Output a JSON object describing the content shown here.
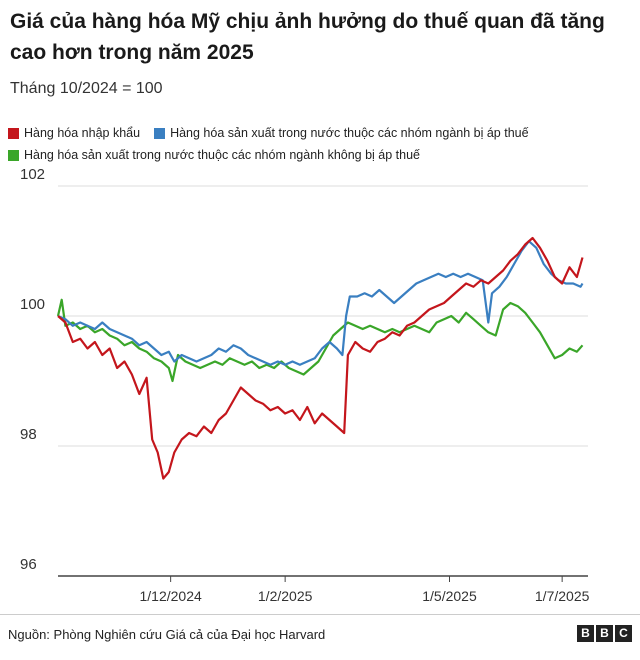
{
  "title": "Giá của hàng hóa Mỹ chịu ảnh hưởng do thuế quan đã tăng cao hơn trong năm 2025",
  "subtitle": "Tháng 10/2024 = 100",
  "source": "Nguồn: Phòng Nghiên cứu Giá cả của Đại học Harvard",
  "logo": [
    "B",
    "B",
    "C"
  ],
  "colors": {
    "red": "#c4161c",
    "blue": "#3a7fc1",
    "green": "#3aa629",
    "grid": "#dddddd",
    "axis": "#444444"
  },
  "chart_data": {
    "type": "line",
    "title": "Giá của hàng hóa Mỹ chịu ảnh hưởng do thuế quan đã tăng cao hơn trong năm 2025",
    "subtitle": "Tháng 10/2024 = 100",
    "xlabel": "",
    "ylabel": "",
    "ylim": [
      96,
      102
    ],
    "yticks": [
      96,
      98,
      100,
      102
    ],
    "xlim": [
      "2024-10-01",
      "2025-07-15"
    ],
    "xticks": [
      {
        "date": "2024-12-01",
        "label": "1/12/2024"
      },
      {
        "date": "2025-02-01",
        "label": "1/2/2025"
      },
      {
        "date": "2025-05-01",
        "label": "1/5/2025"
      },
      {
        "date": "2025-07-01",
        "label": "1/7/2025"
      }
    ],
    "grid": true,
    "legend": "top",
    "series": [
      {
        "name": "Hàng hóa nhập khẩu",
        "color": "#c4161c",
        "points": [
          [
            "2024-10-01",
            100.0
          ],
          [
            "2024-10-05",
            99.9
          ],
          [
            "2024-10-09",
            99.6
          ],
          [
            "2024-10-13",
            99.65
          ],
          [
            "2024-10-17",
            99.5
          ],
          [
            "2024-10-21",
            99.6
          ],
          [
            "2024-10-25",
            99.4
          ],
          [
            "2024-10-29",
            99.5
          ],
          [
            "2024-11-02",
            99.2
          ],
          [
            "2024-11-06",
            99.3
          ],
          [
            "2024-11-10",
            99.1
          ],
          [
            "2024-11-14",
            98.8
          ],
          [
            "2024-11-18",
            99.05
          ],
          [
            "2024-11-21",
            98.1
          ],
          [
            "2024-11-24",
            97.9
          ],
          [
            "2024-11-27",
            97.5
          ],
          [
            "2024-11-30",
            97.6
          ],
          [
            "2024-12-03",
            97.9
          ],
          [
            "2024-12-07",
            98.1
          ],
          [
            "2024-12-11",
            98.2
          ],
          [
            "2024-12-15",
            98.15
          ],
          [
            "2024-12-19",
            98.3
          ],
          [
            "2024-12-23",
            98.2
          ],
          [
            "2024-12-27",
            98.4
          ],
          [
            "2024-12-31",
            98.5
          ],
          [
            "2025-01-04",
            98.7
          ],
          [
            "2025-01-08",
            98.9
          ],
          [
            "2025-01-12",
            98.8
          ],
          [
            "2025-01-16",
            98.7
          ],
          [
            "2025-01-20",
            98.65
          ],
          [
            "2025-01-24",
            98.55
          ],
          [
            "2025-01-28",
            98.6
          ],
          [
            "2025-02-01",
            98.5
          ],
          [
            "2025-02-05",
            98.55
          ],
          [
            "2025-02-09",
            98.4
          ],
          [
            "2025-02-13",
            98.6
          ],
          [
            "2025-02-17",
            98.35
          ],
          [
            "2025-02-21",
            98.5
          ],
          [
            "2025-02-25",
            98.4
          ],
          [
            "2025-03-01",
            98.3
          ],
          [
            "2025-03-05",
            98.2
          ],
          [
            "2025-03-07",
            99.4
          ],
          [
            "2025-03-11",
            99.6
          ],
          [
            "2025-03-15",
            99.5
          ],
          [
            "2025-03-19",
            99.45
          ],
          [
            "2025-03-23",
            99.6
          ],
          [
            "2025-03-27",
            99.65
          ],
          [
            "2025-03-31",
            99.75
          ],
          [
            "2025-04-04",
            99.7
          ],
          [
            "2025-04-08",
            99.85
          ],
          [
            "2025-04-12",
            99.9
          ],
          [
            "2025-04-16",
            100.0
          ],
          [
            "2025-04-20",
            100.1
          ],
          [
            "2025-04-24",
            100.15
          ],
          [
            "2025-04-28",
            100.2
          ],
          [
            "2025-05-02",
            100.3
          ],
          [
            "2025-05-06",
            100.4
          ],
          [
            "2025-05-10",
            100.5
          ],
          [
            "2025-05-14",
            100.45
          ],
          [
            "2025-05-18",
            100.55
          ],
          [
            "2025-05-22",
            100.5
          ],
          [
            "2025-05-26",
            100.6
          ],
          [
            "2025-05-30",
            100.7
          ],
          [
            "2025-06-03",
            100.85
          ],
          [
            "2025-06-07",
            100.95
          ],
          [
            "2025-06-11",
            101.1
          ],
          [
            "2025-06-15",
            101.2
          ],
          [
            "2025-06-19",
            101.05
          ],
          [
            "2025-06-23",
            100.85
          ],
          [
            "2025-06-27",
            100.6
          ],
          [
            "2025-07-01",
            100.5
          ],
          [
            "2025-07-05",
            100.75
          ],
          [
            "2025-07-09",
            100.6
          ],
          [
            "2025-07-12",
            100.9
          ]
        ]
      },
      {
        "name": "Hàng hóa sản xuất trong nước thuộc các nhóm ngành bị áp thuế",
        "color": "#3a7fc1",
        "points": [
          [
            "2024-10-01",
            100.0
          ],
          [
            "2024-10-05",
            99.95
          ],
          [
            "2024-10-09",
            99.85
          ],
          [
            "2024-10-13",
            99.9
          ],
          [
            "2024-10-17",
            99.85
          ],
          [
            "2024-10-21",
            99.8
          ],
          [
            "2024-10-25",
            99.9
          ],
          [
            "2024-10-29",
            99.8
          ],
          [
            "2024-11-02",
            99.75
          ],
          [
            "2024-11-06",
            99.7
          ],
          [
            "2024-11-10",
            99.65
          ],
          [
            "2024-11-14",
            99.55
          ],
          [
            "2024-11-18",
            99.6
          ],
          [
            "2024-11-22",
            99.5
          ],
          [
            "2024-11-26",
            99.4
          ],
          [
            "2024-11-30",
            99.45
          ],
          [
            "2024-12-03",
            99.3
          ],
          [
            "2024-12-07",
            99.4
          ],
          [
            "2024-12-11",
            99.35
          ],
          [
            "2024-12-15",
            99.3
          ],
          [
            "2024-12-19",
            99.35
          ],
          [
            "2024-12-23",
            99.4
          ],
          [
            "2024-12-27",
            99.5
          ],
          [
            "2024-12-31",
            99.45
          ],
          [
            "2025-01-04",
            99.55
          ],
          [
            "2025-01-08",
            99.5
          ],
          [
            "2025-01-12",
            99.4
          ],
          [
            "2025-01-16",
            99.35
          ],
          [
            "2025-01-20",
            99.3
          ],
          [
            "2025-01-24",
            99.25
          ],
          [
            "2025-01-28",
            99.3
          ],
          [
            "2025-02-01",
            99.25
          ],
          [
            "2025-02-05",
            99.3
          ],
          [
            "2025-02-09",
            99.25
          ],
          [
            "2025-02-13",
            99.3
          ],
          [
            "2025-02-17",
            99.35
          ],
          [
            "2025-02-21",
            99.5
          ],
          [
            "2025-02-25",
            99.6
          ],
          [
            "2025-03-01",
            99.5
          ],
          [
            "2025-03-04",
            99.4
          ],
          [
            "2025-03-06",
            100.0
          ],
          [
            "2025-03-08",
            100.3
          ],
          [
            "2025-03-12",
            100.3
          ],
          [
            "2025-03-16",
            100.35
          ],
          [
            "2025-03-20",
            100.3
          ],
          [
            "2025-03-24",
            100.4
          ],
          [
            "2025-03-28",
            100.3
          ],
          [
            "2025-04-01",
            100.2
          ],
          [
            "2025-04-05",
            100.3
          ],
          [
            "2025-04-09",
            100.4
          ],
          [
            "2025-04-13",
            100.5
          ],
          [
            "2025-04-17",
            100.55
          ],
          [
            "2025-04-21",
            100.6
          ],
          [
            "2025-04-25",
            100.65
          ],
          [
            "2025-04-29",
            100.6
          ],
          [
            "2025-05-03",
            100.65
          ],
          [
            "2025-05-07",
            100.6
          ],
          [
            "2025-05-11",
            100.65
          ],
          [
            "2025-05-15",
            100.6
          ],
          [
            "2025-05-19",
            100.55
          ],
          [
            "2025-05-22",
            99.9
          ],
          [
            "2025-05-24",
            100.35
          ],
          [
            "2025-05-28",
            100.45
          ],
          [
            "2025-06-01",
            100.6
          ],
          [
            "2025-06-05",
            100.8
          ],
          [
            "2025-06-09",
            101.0
          ],
          [
            "2025-06-13",
            101.15
          ],
          [
            "2025-06-17",
            101.05
          ],
          [
            "2025-06-21",
            100.8
          ],
          [
            "2025-06-25",
            100.65
          ],
          [
            "2025-06-29",
            100.55
          ],
          [
            "2025-07-03",
            100.5
          ],
          [
            "2025-07-07",
            100.5
          ],
          [
            "2025-07-11",
            100.45
          ],
          [
            "2025-07-12",
            100.5
          ]
        ]
      },
      {
        "name": "Hàng hóa sản xuất trong nước thuộc các nhóm ngành không bị áp thuế",
        "color": "#3aa629",
        "points": [
          [
            "2024-10-01",
            100.0
          ],
          [
            "2024-10-03",
            100.25
          ],
          [
            "2024-10-05",
            99.85
          ],
          [
            "2024-10-09",
            99.9
          ],
          [
            "2024-10-13",
            99.8
          ],
          [
            "2024-10-17",
            99.85
          ],
          [
            "2024-10-21",
            99.75
          ],
          [
            "2024-10-25",
            99.8
          ],
          [
            "2024-10-29",
            99.7
          ],
          [
            "2024-11-02",
            99.65
          ],
          [
            "2024-11-06",
            99.55
          ],
          [
            "2024-11-10",
            99.6
          ],
          [
            "2024-11-14",
            99.5
          ],
          [
            "2024-11-18",
            99.45
          ],
          [
            "2024-11-22",
            99.35
          ],
          [
            "2024-11-26",
            99.3
          ],
          [
            "2024-11-30",
            99.2
          ],
          [
            "2024-12-02",
            99.0
          ],
          [
            "2024-12-05",
            99.4
          ],
          [
            "2024-12-09",
            99.3
          ],
          [
            "2024-12-13",
            99.25
          ],
          [
            "2024-12-17",
            99.2
          ],
          [
            "2024-12-21",
            99.25
          ],
          [
            "2024-12-25",
            99.3
          ],
          [
            "2024-12-29",
            99.25
          ],
          [
            "2025-01-02",
            99.35
          ],
          [
            "2025-01-06",
            99.3
          ],
          [
            "2025-01-10",
            99.25
          ],
          [
            "2025-01-14",
            99.3
          ],
          [
            "2025-01-18",
            99.2
          ],
          [
            "2025-01-22",
            99.25
          ],
          [
            "2025-01-26",
            99.2
          ],
          [
            "2025-01-30",
            99.3
          ],
          [
            "2025-02-03",
            99.2
          ],
          [
            "2025-02-07",
            99.15
          ],
          [
            "2025-02-11",
            99.1
          ],
          [
            "2025-02-15",
            99.2
          ],
          [
            "2025-02-19",
            99.3
          ],
          [
            "2025-02-23",
            99.5
          ],
          [
            "2025-02-27",
            99.7
          ],
          [
            "2025-03-03",
            99.8
          ],
          [
            "2025-03-07",
            99.9
          ],
          [
            "2025-03-11",
            99.85
          ],
          [
            "2025-03-15",
            99.8
          ],
          [
            "2025-03-19",
            99.85
          ],
          [
            "2025-03-23",
            99.8
          ],
          [
            "2025-03-27",
            99.75
          ],
          [
            "2025-03-31",
            99.8
          ],
          [
            "2025-04-04",
            99.75
          ],
          [
            "2025-04-08",
            99.8
          ],
          [
            "2025-04-12",
            99.85
          ],
          [
            "2025-04-16",
            99.8
          ],
          [
            "2025-04-20",
            99.75
          ],
          [
            "2025-04-24",
            99.9
          ],
          [
            "2025-04-28",
            99.95
          ],
          [
            "2025-05-02",
            100.0
          ],
          [
            "2025-05-06",
            99.9
          ],
          [
            "2025-05-10",
            100.05
          ],
          [
            "2025-05-14",
            99.95
          ],
          [
            "2025-05-18",
            99.85
          ],
          [
            "2025-05-22",
            99.75
          ],
          [
            "2025-05-26",
            99.7
          ],
          [
            "2025-05-30",
            100.1
          ],
          [
            "2025-06-03",
            100.2
          ],
          [
            "2025-06-07",
            100.15
          ],
          [
            "2025-06-11",
            100.05
          ],
          [
            "2025-06-15",
            99.9
          ],
          [
            "2025-06-19",
            99.75
          ],
          [
            "2025-06-23",
            99.55
          ],
          [
            "2025-06-27",
            99.35
          ],
          [
            "2025-07-01",
            99.4
          ],
          [
            "2025-07-05",
            99.5
          ],
          [
            "2025-07-09",
            99.45
          ],
          [
            "2025-07-12",
            99.55
          ]
        ]
      }
    ]
  }
}
